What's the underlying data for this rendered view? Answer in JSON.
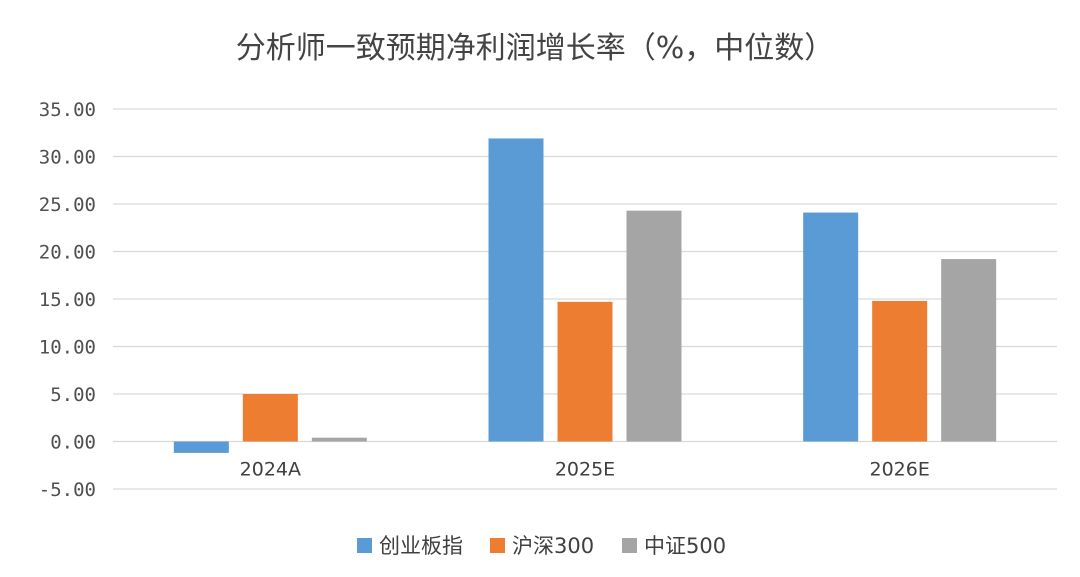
{
  "chart_data": {
    "type": "bar",
    "title": "分析师一致预期净利润增长率（%，中位数）",
    "categories": [
      "2024A",
      "2025E",
      "2026E"
    ],
    "series": [
      {
        "name": "创业板指",
        "color": "#5B9BD5",
        "values": [
          -1.2,
          31.9,
          24.1
        ]
      },
      {
        "name": "沪深300",
        "color": "#ED7D31",
        "values": [
          5.0,
          14.7,
          14.8
        ]
      },
      {
        "name": "中证500",
        "color": "#A5A5A5",
        "values": [
          0.4,
          24.3,
          19.2
        ]
      }
    ],
    "yticks": [
      "35.00",
      "30.00",
      "25.00",
      "20.00",
      "15.00",
      "10.00",
      "5.00",
      "0.00",
      "-5.00"
    ],
    "ylim": [
      -5,
      35
    ],
    "grid": true,
    "legend_position": "bottom",
    "xlabel": "",
    "ylabel": ""
  }
}
